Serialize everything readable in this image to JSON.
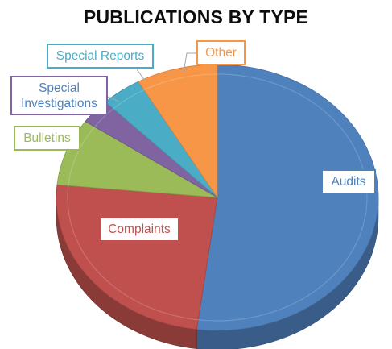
{
  "chart_data": {
    "type": "pie",
    "title": "PUBLICATIONS BY TYPE",
    "slices": [
      {
        "label": "Audits",
        "value": 51,
        "color": "#4f81bd"
      },
      {
        "label": "Complaints",
        "value": 24,
        "color": "#c0504d"
      },
      {
        "label": "Bulletins",
        "value": 8,
        "color": "#9bbb59"
      },
      {
        "label": "Special Investigations",
        "value": 3,
        "color": "#8064a2"
      },
      {
        "label": "Special Reports",
        "value": 4,
        "color": "#4bacc6"
      },
      {
        "label": "Other",
        "value": 8,
        "color": "#f79646"
      }
    ],
    "legend": "none",
    "labels": "callouts"
  }
}
